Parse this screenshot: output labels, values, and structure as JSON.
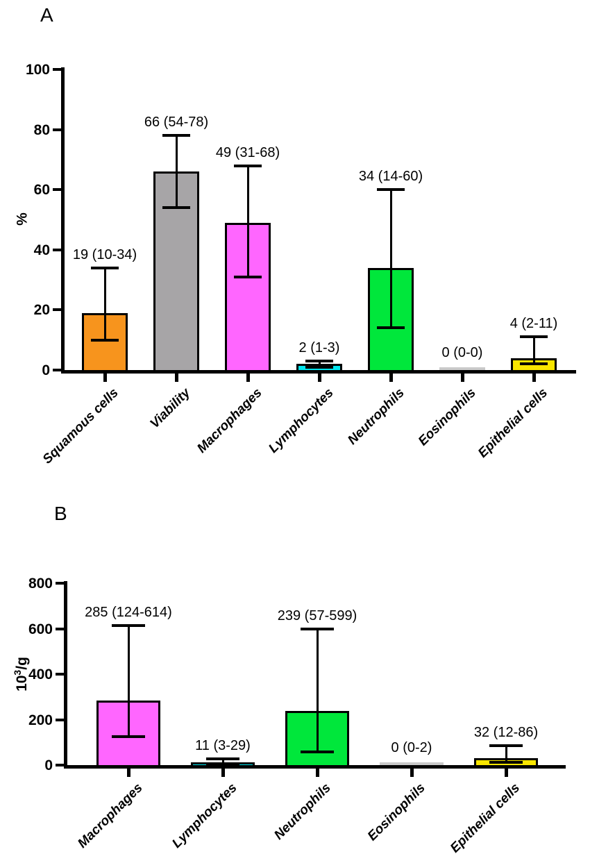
{
  "figure": {
    "background": "#ffffff",
    "panel_a_label": "A",
    "panel_b_label": "B"
  },
  "chart_data": [
    {
      "type": "bar",
      "panel_label": "A",
      "title": "",
      "xlabel": "",
      "ylabel": {
        "base": "%",
        "sup": "",
        "rest": ""
      },
      "ylim": [
        0,
        100
      ],
      "yticks": [
        0,
        20,
        40,
        60,
        80,
        100
      ],
      "grid": false,
      "legend": false,
      "categories": [
        "Squamous cells",
        "Viability",
        "Macrophages",
        "Lymphocytes",
        "Neutrophils",
        "Eosinophils",
        "Epithelial cells"
      ],
      "values": [
        19,
        66,
        49,
        2,
        34,
        0,
        4
      ],
      "error_low": [
        10,
        54,
        31,
        1,
        14,
        0,
        2
      ],
      "error_high": [
        34,
        78,
        68,
        3,
        60,
        0,
        11
      ],
      "bar_labels": [
        "19 (10-34)",
        "66 (54-78)",
        "49 (31-68)",
        "2 (1-3)",
        "34 (14-60)",
        "0 (0-0)",
        "4 (2-11)"
      ],
      "bar_colors": [
        "#F7941D",
        "#A7A5A7",
        "#FF66FF",
        "#00E5EE",
        "#00E73B",
        "#C9C9C9",
        "#F9E600"
      ],
      "error_bar_color": "#000000",
      "bar_border_color": "#000000"
    },
    {
      "type": "bar",
      "panel_label": "B",
      "title": "",
      "xlabel": "",
      "ylabel": {
        "base": "10",
        "sup": "3",
        "rest": "/g"
      },
      "ylim": [
        0,
        800
      ],
      "yticks": [
        0,
        200,
        400,
        600,
        800
      ],
      "grid": false,
      "legend": false,
      "categories": [
        "Macrophages",
        "Lymphocytes",
        "Neutrophils",
        "Eosinophils",
        "Epithelial cells"
      ],
      "values": [
        285,
        11,
        239,
        0,
        32
      ],
      "error_low": [
        124,
        3,
        57,
        0,
        12
      ],
      "error_high": [
        614,
        29,
        599,
        2,
        86
      ],
      "bar_labels": [
        "285 (124-614)",
        "11 (3-29)",
        "239 (57-599)",
        "0 (0-2)",
        "32 (12-86)"
      ],
      "bar_colors": [
        "#FF66FF",
        "#00E5EE",
        "#00E73B",
        "#C9C9C9",
        "#F9E600"
      ],
      "error_bar_color": "#000000",
      "bar_border_color": "#000000"
    }
  ]
}
